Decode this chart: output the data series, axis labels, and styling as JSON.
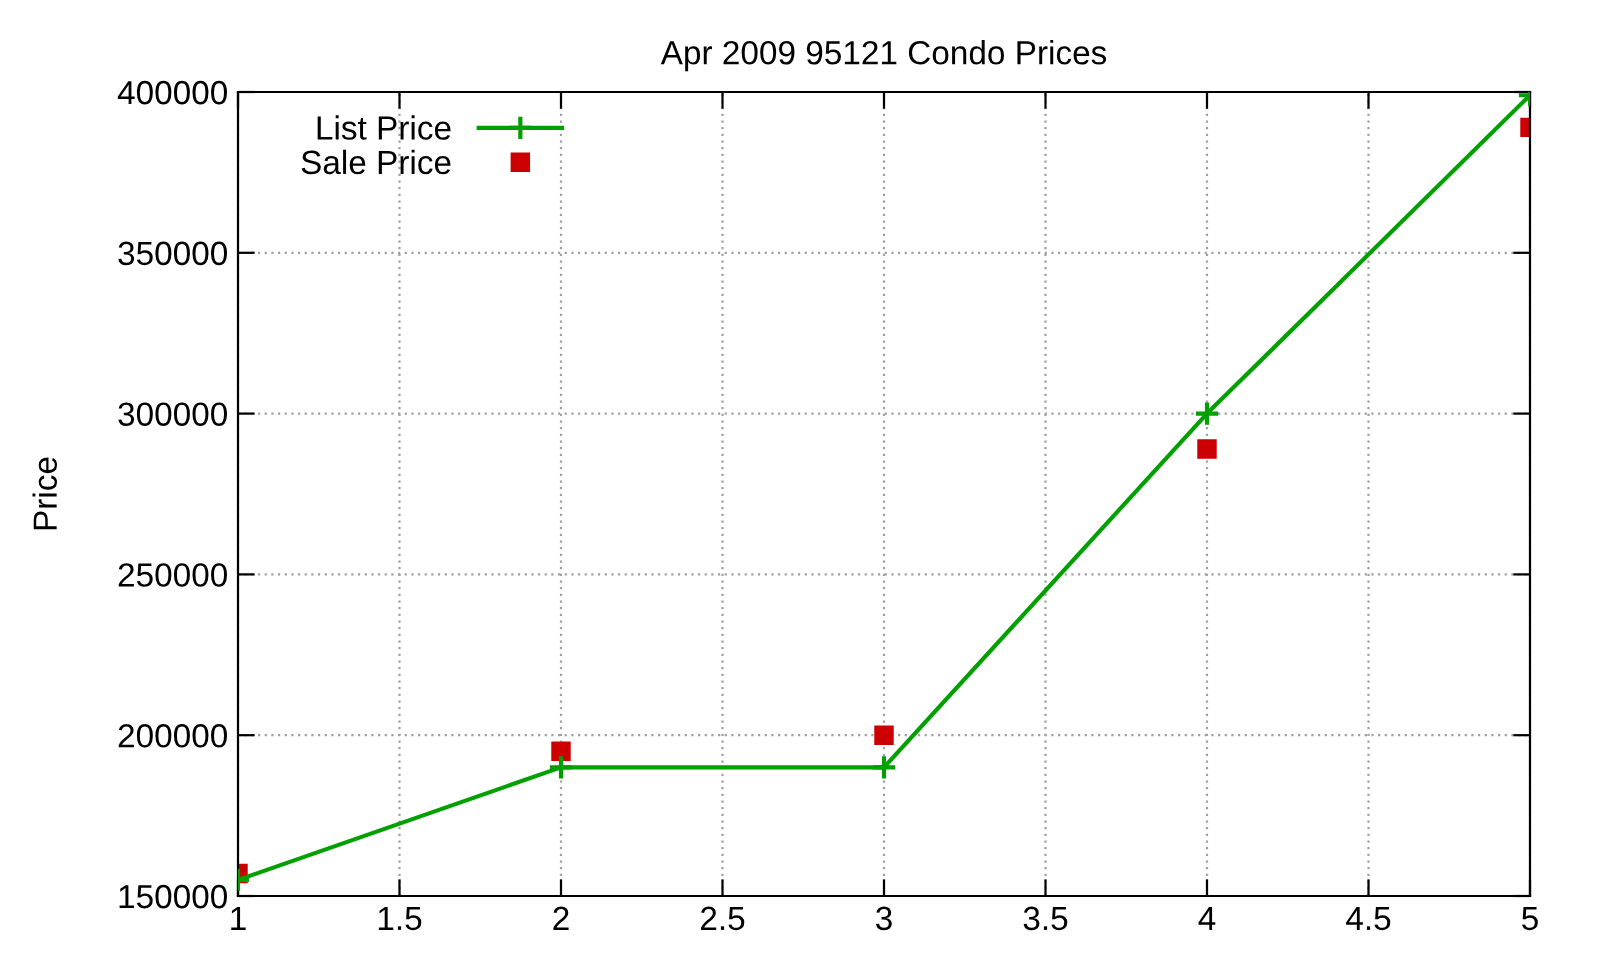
{
  "chart_data": {
    "type": "line",
    "title": "Apr 2009 95121 Condo Prices",
    "ylabel": "Price",
    "x": [
      1,
      2,
      3,
      4,
      5
    ],
    "series": [
      {
        "name": "List Price",
        "color": "#00a000",
        "values": [
          155000,
          190000,
          190000,
          300000,
          399000
        ],
        "marker": "cross"
      },
      {
        "name": "Sale Price",
        "type": "scatter",
        "color": "#cc0000",
        "values": [
          157000,
          195000,
          200000,
          289000,
          389000
        ],
        "marker": "square"
      }
    ],
    "xlim": [
      1,
      5
    ],
    "xticks": [
      1,
      1.5,
      2,
      2.5,
      3,
      3.5,
      4,
      4.5,
      5
    ],
    "ylim": [
      150000,
      400000
    ],
    "yticks": [
      150000,
      200000,
      250000,
      300000,
      350000,
      400000
    ],
    "grid": true,
    "legend": "top left"
  }
}
